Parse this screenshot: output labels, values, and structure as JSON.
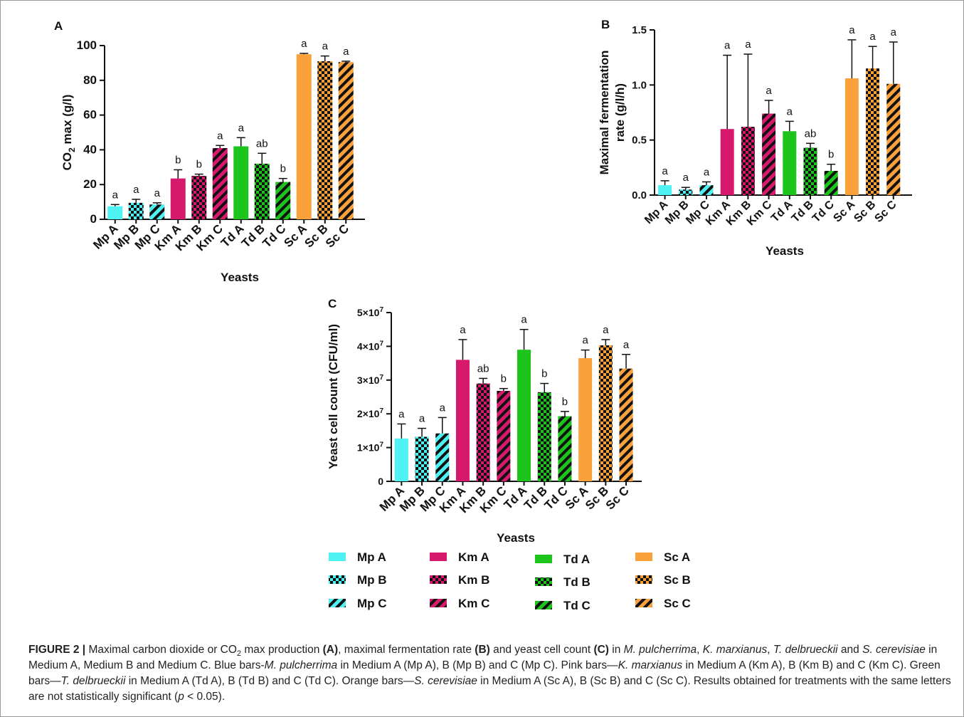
{
  "figure": {
    "panels": [
      {
        "letter": "A",
        "tick_labels": [
          "0",
          "20",
          "40",
          "60",
          "80",
          "100"
        ]
      },
      {
        "letter": "B",
        "tick_labels": [
          "0.0",
          "0.5",
          "1.0",
          "1.5"
        ]
      },
      {
        "letter": "C",
        "tick_labels": [
          "0",
          "1×10",
          "2×10",
          "3×10",
          "4×10",
          "5×10"
        ],
        "tick_exponent": "7"
      }
    ]
  },
  "colors": {
    "Mp": "#4ef2f2",
    "Km": "#d6196c",
    "Td": "#1cc41c",
    "Sc": "#fba13b",
    "outline": "#111111"
  },
  "chart_data": [
    {
      "type": "bar",
      "panel": "A",
      "categories": [
        "Mp A",
        "Mp B",
        "Mp C",
        "Km A",
        "Km B",
        "Km C",
        "Td A",
        "Td B",
        "Td C",
        "Sc A",
        "Sc B",
        "Sc C"
      ],
      "values": [
        7.5,
        9.5,
        8.5,
        23.5,
        25,
        41,
        42,
        32,
        21.5,
        95,
        91,
        90.5
      ],
      "errors": [
        1,
        2,
        1,
        5,
        1,
        1.5,
        5,
        6,
        2,
        0.5,
        3,
        0.5
      ],
      "letters": [
        "a",
        "a",
        "a",
        "b",
        "b",
        "a",
        "a",
        "ab",
        "b",
        "a",
        "a",
        "a"
      ],
      "ylim": [
        0,
        100
      ],
      "yticks": [
        0,
        20,
        40,
        60,
        80,
        100
      ],
      "ylabel": "CO2 max (g/l)",
      "ylabel_main": "CO",
      "ylabel_sub": "2",
      "ylabel_rest": " max (g/l)",
      "xlabel": "Yeasts"
    },
    {
      "type": "bar",
      "panel": "B",
      "categories": [
        "Mp A",
        "Mp B",
        "Mp C",
        "Km A",
        "Km B",
        "Km C",
        "Td A",
        "Td B",
        "Td C",
        "Sc A",
        "Sc B",
        "Sc C"
      ],
      "values": [
        0.09,
        0.05,
        0.09,
        0.6,
        0.62,
        0.74,
        0.58,
        0.43,
        0.22,
        1.06,
        1.15,
        1.01
      ],
      "errors": [
        0.04,
        0.02,
        0.03,
        0.67,
        0.66,
        0.12,
        0.09,
        0.04,
        0.06,
        0.35,
        0.2,
        0.38
      ],
      "letters": [
        "a",
        "a",
        "a",
        "a",
        "a",
        "a",
        "a",
        "ab",
        "b",
        "a",
        "a",
        "a"
      ],
      "ylim": [
        0,
        1.5
      ],
      "yticks": [
        0,
        0.5,
        1.0,
        1.5
      ],
      "ylabel": "Maximal fermentation rate (g/l/h)",
      "ylabel_line1": "Maximal fermentation",
      "ylabel_line2": "rate (g/l/h)",
      "xlabel": "Yeasts"
    },
    {
      "type": "bar",
      "panel": "C",
      "categories": [
        "Mp A",
        "Mp B",
        "Mp C",
        "Km A",
        "Km B",
        "Km C",
        "Td A",
        "Td B",
        "Td C",
        "Sc A",
        "Sc B",
        "Sc C"
      ],
      "values": [
        12700000,
        13200000,
        14200000,
        36000000,
        29000000,
        26800000,
        39000000,
        26400000,
        19300000,
        36500000,
        40300000,
        33400000
      ],
      "errors": [
        4300000,
        2500000,
        4700000,
        6000000,
        1500000,
        700000,
        6000000,
        2600000,
        1400000,
        2400000,
        1700000,
        4200000
      ],
      "letters": [
        "a",
        "a",
        "a",
        "a",
        "ab",
        "b",
        "a",
        "b",
        "b",
        "a",
        "a",
        "a"
      ],
      "ylim": [
        0,
        50000000
      ],
      "yticks": [
        0,
        10000000,
        20000000,
        30000000,
        40000000,
        50000000
      ],
      "ylabel": "Yeast cell count (CFU/ml)",
      "xlabel": "Yeasts"
    }
  ],
  "legend": [
    {
      "label": "Mp A",
      "color": "#4ef2f2",
      "pattern": "solid"
    },
    {
      "label": "Mp B",
      "color": "#4ef2f2",
      "pattern": "checker"
    },
    {
      "label": "Mp C",
      "color": "#4ef2f2",
      "pattern": "diagonal"
    },
    {
      "label": "Km A",
      "color": "#d6196c",
      "pattern": "solid"
    },
    {
      "label": "Km B",
      "color": "#d6196c",
      "pattern": "checker"
    },
    {
      "label": "Km C",
      "color": "#d6196c",
      "pattern": "diagonal"
    },
    {
      "label": "Td A",
      "color": "#1cc41c",
      "pattern": "solid"
    },
    {
      "label": "Td B",
      "color": "#1cc41c",
      "pattern": "checker"
    },
    {
      "label": "Td C",
      "color": "#1cc41c",
      "pattern": "diagonal"
    },
    {
      "label": "Sc A",
      "color": "#fba13b",
      "pattern": "solid"
    },
    {
      "label": "Sc B",
      "color": "#fba13b",
      "pattern": "checker"
    },
    {
      "label": "Sc C",
      "color": "#fba13b",
      "pattern": "diagonal"
    }
  ],
  "caption": {
    "label": "FIGURE 2 |",
    "segments": [
      {
        "t": " Maximal carbon dioxide or CO"
      },
      {
        "t": "2",
        "sub": true
      },
      {
        "t": " max production "
      },
      {
        "t": "(A)",
        "b": true
      },
      {
        "t": ", maximal fermentation rate "
      },
      {
        "t": "(B)",
        "b": true
      },
      {
        "t": " and yeast cell count "
      },
      {
        "t": "(C)",
        "b": true
      },
      {
        "t": " in "
      },
      {
        "t": "M. pulcherrima",
        "i": true
      },
      {
        "t": ", "
      },
      {
        "t": "K. marxianus",
        "i": true
      },
      {
        "t": ", "
      },
      {
        "t": "T. delbrueckii",
        "i": true
      },
      {
        "t": " and "
      },
      {
        "t": "S. cerevisiae",
        "i": true
      },
      {
        "t": " in Medium A, Medium B and Medium C. Blue bars-"
      },
      {
        "t": "M. pulcherrima",
        "i": true
      },
      {
        "t": " in Medium A (Mp A), B (Mp B) and C (Mp C). Pink bars—"
      },
      {
        "t": "K. marxianus",
        "i": true
      },
      {
        "t": " in Medium A (Km A), B (Km B) and C (Km C). Green bars—"
      },
      {
        "t": "T. delbrueckii",
        "i": true
      },
      {
        "t": " in Medium A (Td A), B (Td B) and C (Td C). Orange bars—"
      },
      {
        "t": "S. cerevisiae",
        "i": true
      },
      {
        "t": " in Medium A (Sc A), B (Sc B) and C (Sc C). Results obtained for treatments with the same letters are not statistically significant ("
      },
      {
        "t": "p",
        "i": true
      },
      {
        "t": " < 0.05)."
      }
    ]
  }
}
